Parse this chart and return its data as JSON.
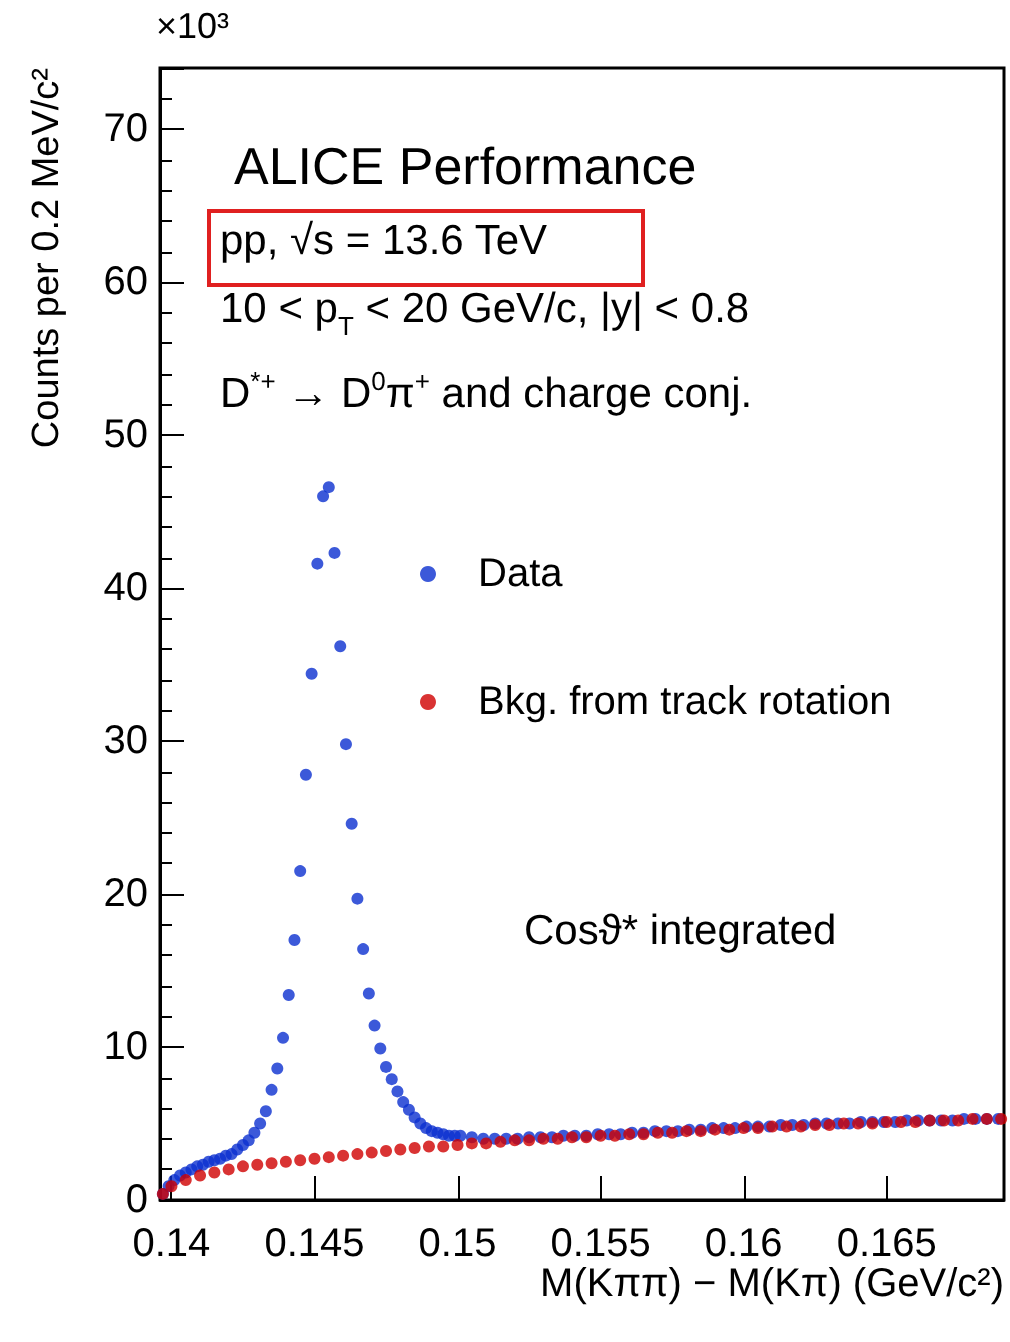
{
  "chart_data": {
    "type": "scatter",
    "title": "ALICE Performance",
    "xlabel": "M(Kππ) − M(Kπ) (GeV/c²)",
    "ylabel": "Counts per 0.2 MeV/c²",
    "annotations": [
      "×10³",
      "pp, √s = 13.6 TeV",
      "10 < p$_{T}$ < 20 GeV/c, |y| < 0.8",
      "D$^{*+}$ → D$^{0}$π$^{+}$ and charge conj.",
      "Cosϑ* integrated"
    ],
    "xlim": [
      0.1396,
      0.1691
    ],
    "xticks": [
      0.14,
      0.145,
      0.15,
      0.155,
      0.16,
      0.165
    ],
    "ylim": [
      0,
      74
    ],
    "yticks": [
      0,
      10,
      20,
      30,
      40,
      50,
      60,
      70
    ],
    "grid": false,
    "legend": "right",
    "marker": "circle",
    "series": [
      {
        "name": "Data",
        "color": "#0b2fd0",
        "x": [
          0.1397,
          0.1399,
          0.1401,
          0.1403,
          0.1405,
          0.1407,
          0.1409,
          0.1411,
          0.1413,
          0.1415,
          0.1417,
          0.1419,
          0.1421,
          0.1423,
          0.1425,
          0.1427,
          0.1429,
          0.1431,
          0.1433,
          0.1435,
          0.1437,
          0.1439,
          0.1441,
          0.1443,
          0.1445,
          0.1447,
          0.1449,
          0.1451,
          0.1453,
          0.1455,
          0.1457,
          0.1459,
          0.1461,
          0.1463,
          0.1465,
          0.1467,
          0.1469,
          0.1471,
          0.1473,
          0.1475,
          0.1477,
          0.1479,
          0.1481,
          0.1483,
          0.1485,
          0.1487,
          0.1489,
          0.1491,
          0.1493,
          0.1495,
          0.1497,
          0.1499,
          0.1501,
          0.1505,
          0.1509,
          0.1513,
          0.1517,
          0.1521,
          0.1525,
          0.1529,
          0.1533,
          0.1537,
          0.1541,
          0.1545,
          0.1549,
          0.1553,
          0.1557,
          0.1561,
          0.1565,
          0.1569,
          0.1573,
          0.1577,
          0.1581,
          0.1585,
          0.1589,
          0.1593,
          0.1597,
          0.1601,
          0.1605,
          0.1609,
          0.1613,
          0.1617,
          0.1621,
          0.1625,
          0.1629,
          0.1633,
          0.1637,
          0.1641,
          0.1645,
          0.1649,
          0.1653,
          0.1657,
          0.1661,
          0.1665,
          0.1669,
          0.1673,
          0.1677,
          0.1681,
          0.1685,
          0.1689
        ],
        "values": [
          0.4,
          0.9,
          1.3,
          1.6,
          1.8,
          2.0,
          2.2,
          2.3,
          2.5,
          2.6,
          2.7,
          2.9,
          3.0,
          3.3,
          3.6,
          3.9,
          4.4,
          5.0,
          5.8,
          7.2,
          8.6,
          10.6,
          13.4,
          17.0,
          21.5,
          27.8,
          34.4,
          41.6,
          46.0,
          46.6,
          42.3,
          36.2,
          29.8,
          24.6,
          19.7,
          16.4,
          13.5,
          11.4,
          9.9,
          8.7,
          7.9,
          7.1,
          6.4,
          5.9,
          5.4,
          5.0,
          4.7,
          4.5,
          4.4,
          4.3,
          4.2,
          4.2,
          4.2,
          4.1,
          4.0,
          4.0,
          4.0,
          4.0,
          4.1,
          4.1,
          4.1,
          4.2,
          4.2,
          4.2,
          4.3,
          4.3,
          4.3,
          4.4,
          4.4,
          4.5,
          4.5,
          4.5,
          4.6,
          4.6,
          4.7,
          4.7,
          4.7,
          4.8,
          4.8,
          4.8,
          4.9,
          4.9,
          4.9,
          5.0,
          5.0,
          5.0,
          5.0,
          5.1,
          5.1,
          5.1,
          5.1,
          5.2,
          5.2,
          5.2,
          5.2,
          5.2,
          5.3,
          5.3,
          5.3,
          5.3
        ]
      },
      {
        "name": "Bkg. from track rotation",
        "color": "#d00000",
        "x": [
          0.1397,
          0.14,
          0.1405,
          0.141,
          0.1415,
          0.142,
          0.1425,
          0.143,
          0.1435,
          0.144,
          0.1445,
          0.145,
          0.1455,
          0.146,
          0.1465,
          0.147,
          0.1475,
          0.148,
          0.1485,
          0.149,
          0.1495,
          0.15,
          0.1505,
          0.151,
          0.1515,
          0.152,
          0.1525,
          0.153,
          0.1535,
          0.154,
          0.1545,
          0.155,
          0.1555,
          0.156,
          0.1565,
          0.157,
          0.1575,
          0.158,
          0.1585,
          0.159,
          0.1595,
          0.16,
          0.1605,
          0.161,
          0.1615,
          0.162,
          0.1625,
          0.163,
          0.1635,
          0.164,
          0.1645,
          0.165,
          0.1655,
          0.166,
          0.1665,
          0.167,
          0.1675,
          0.168,
          0.1685,
          0.169
        ],
        "values": [
          0.4,
          0.9,
          1.3,
          1.6,
          1.8,
          2.0,
          2.2,
          2.3,
          2.4,
          2.5,
          2.6,
          2.7,
          2.8,
          2.9,
          3.0,
          3.1,
          3.2,
          3.3,
          3.4,
          3.5,
          3.5,
          3.6,
          3.7,
          3.7,
          3.8,
          3.9,
          3.9,
          4.0,
          4.0,
          4.1,
          4.1,
          4.2,
          4.2,
          4.3,
          4.3,
          4.4,
          4.4,
          4.5,
          4.5,
          4.6,
          4.6,
          4.7,
          4.7,
          4.8,
          4.8,
          4.8,
          4.9,
          4.9,
          5.0,
          5.0,
          5.0,
          5.1,
          5.1,
          5.1,
          5.2,
          5.2,
          5.2,
          5.3,
          5.3,
          5.3
        ]
      }
    ]
  }
}
